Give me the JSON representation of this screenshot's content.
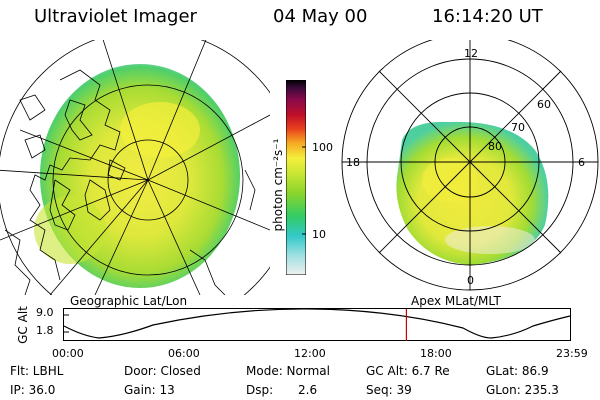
{
  "header": {
    "title": "Ultraviolet Imager",
    "date": "04 May 00",
    "time": "16:14:20 UT"
  },
  "left_panel": {
    "caption": "Geographic Lat/Lon"
  },
  "right_panel": {
    "caption": "Apex MLat/MLT",
    "mlt_labels": [
      "12",
      "18",
      "6",
      "0"
    ],
    "lat_labels": [
      "60",
      "70",
      "80"
    ]
  },
  "colorbar": {
    "axis_label": "photon cm⁻²s⁻¹",
    "ticks": [
      "100",
      "10"
    ],
    "scale": "log",
    "colors": [
      "#f0f0f0",
      "#9fe0e0",
      "#33c9c9",
      "#33cc66",
      "#8bd52c",
      "#c8e633",
      "#f5ef3c",
      "#f5a623",
      "#e8401c",
      "#c0102a",
      "#8a0a4a",
      "#3a0a3a",
      "#000000"
    ]
  },
  "altitude_plot": {
    "ylabel": "GC Alt",
    "yticks": [
      "9.0",
      "1.8"
    ],
    "xticks": [
      "00:00",
      "06:00",
      "12:00",
      "18:00",
      "23:59"
    ],
    "current_time_hours": 16.24,
    "marker_color": "#cc0000"
  },
  "info": {
    "flt": "Flt: LBHL",
    "ip": "IP: 36.0",
    "door": "Door: Closed",
    "gain": "Gain: 13",
    "mode": "Mode: Normal",
    "dsp_label": "Dsp:",
    "dsp_value": "2.6",
    "gcalt": "GC Alt: 6.7 Re",
    "seq": "Seq: 39",
    "glat": "GLat:  86.9",
    "glon": "GLon: 235.3"
  }
}
